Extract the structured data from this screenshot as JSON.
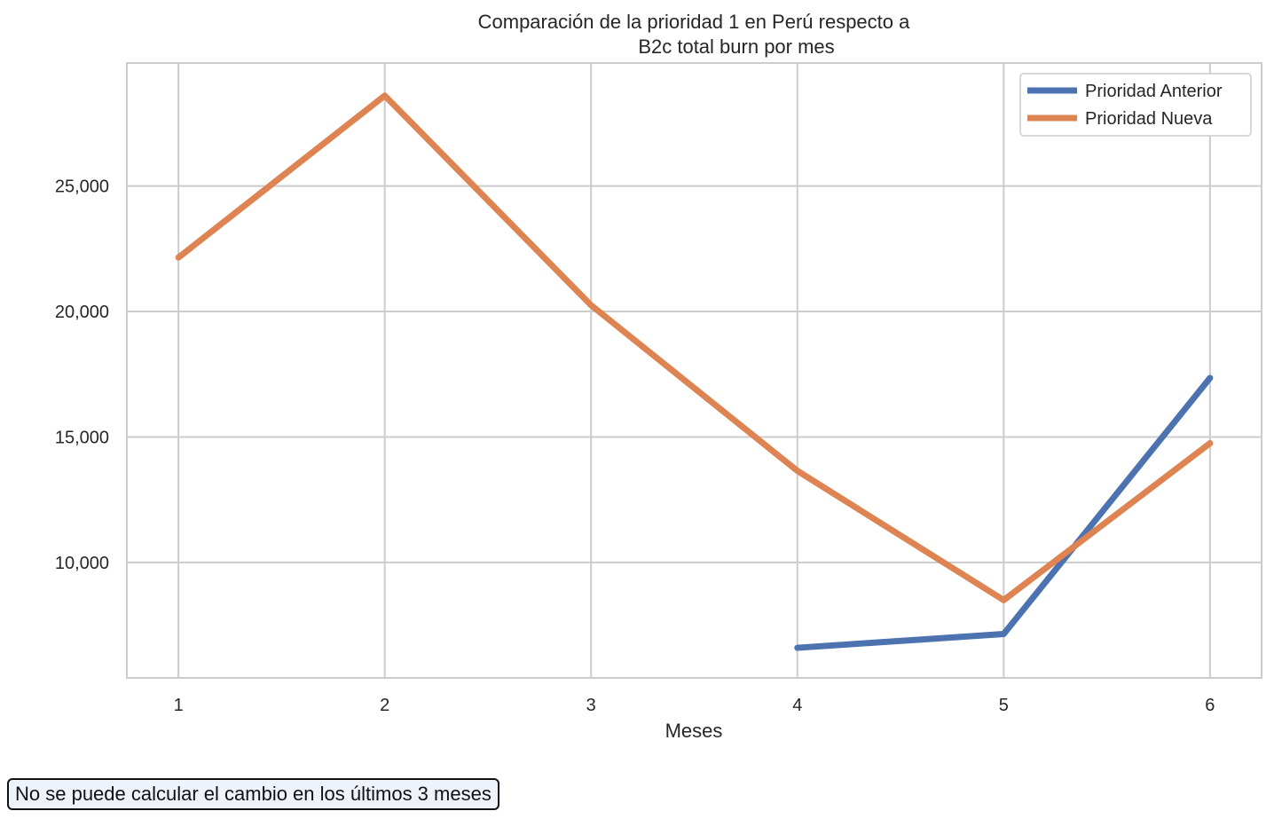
{
  "chart_data": {
    "type": "line",
    "title_lines": [
      "Comparación de la prioridad 1 en Perú respecto a",
      "B2c total burn por mes"
    ],
    "xlabel": "Meses",
    "ylabel": "",
    "x": [
      1,
      2,
      3,
      4,
      5,
      6
    ],
    "xlim": [
      0.75,
      6.25
    ],
    "ylim": [
      5400,
      29900
    ],
    "y_ticks": [
      10000,
      15000,
      20000,
      25000
    ],
    "y_tick_labels": [
      "10,000",
      "15,000",
      "20,000",
      "25,000"
    ],
    "x_tick_labels": [
      "1",
      "2",
      "3",
      "4",
      "5",
      "6"
    ],
    "grid": true,
    "legend_position": "top-right",
    "series": [
      {
        "name": "Prioridad Anterior",
        "color": "#4c72b0",
        "x": [
          4,
          5,
          6
        ],
        "values": [
          6600,
          7150,
          17350
        ]
      },
      {
        "name": "Prioridad Nueva",
        "color": "#dd8452",
        "x": [
          1,
          2,
          3,
          4,
          5,
          6
        ],
        "values": [
          22150,
          28600,
          20250,
          13650,
          8500,
          14750
        ]
      }
    ]
  },
  "note": "No se puede calcular el cambio en los últimos 3 meses"
}
